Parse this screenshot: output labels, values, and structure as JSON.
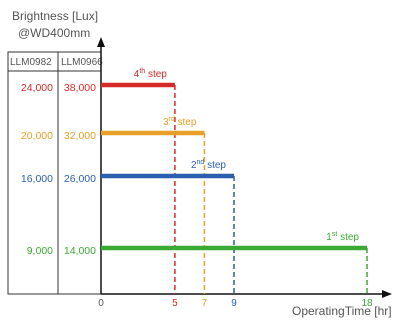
{
  "chart_data": {
    "type": "line",
    "ylabel_lines": [
      "Brightness [Lux]",
      "@WD400mm"
    ],
    "xlabel": "OperatingTime [hr]",
    "column_headers": [
      "LLM0982",
      "LLM0966"
    ],
    "x_ticks": [
      "0",
      "5",
      "7",
      "9",
      "18"
    ],
    "x_tick_values": [
      0,
      5,
      7,
      9,
      18
    ],
    "xlim": [
      0,
      20
    ],
    "grid": false,
    "series": [
      {
        "name": "4th step",
        "step_label": "4",
        "step_suffix": "th",
        "y_llm0982": "24,000",
        "y_llm0966": "38,000",
        "x": [
          0,
          5
        ],
        "y": [
          38000,
          38000
        ],
        "color": "#d42a2a"
      },
      {
        "name": "3rd step",
        "step_label": "3",
        "step_suffix": "rd",
        "y_llm0982": "20,000",
        "y_llm0966": "32,000",
        "x": [
          0,
          7
        ],
        "y": [
          32000,
          32000
        ],
        "color": "#e8a028"
      },
      {
        "name": "2nd step",
        "step_label": "2",
        "step_suffix": "nd",
        "y_llm0982": "16,000",
        "y_llm0966": "26,000",
        "x": [
          0,
          9
        ],
        "y": [
          26000,
          26000
        ],
        "color": "#2a5fb0"
      },
      {
        "name": "1st step",
        "step_label": "1",
        "step_suffix": "st",
        "y_llm0982": "9,000",
        "y_llm0966": "14,000",
        "x": [
          0,
          18
        ],
        "y": [
          14000,
          14000
        ],
        "color": "#3aaa35"
      }
    ]
  }
}
